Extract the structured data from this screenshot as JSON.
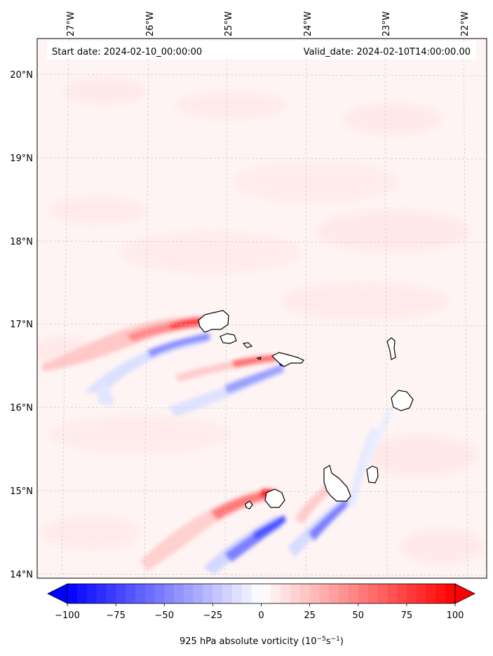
{
  "header": {
    "start_date": "Start date: 2024-02-10_00:00:00",
    "valid_date": "Valid_date: 2024-02-10T14:00:00.00"
  },
  "longitude_ticks": [
    "27°W",
    "26°W",
    "25°W",
    "24°W",
    "23°W",
    "22°W"
  ],
  "latitude_ticks": [
    "20°N",
    "19°N",
    "18°N",
    "17°N",
    "16°N",
    "15°N",
    "14°N"
  ],
  "colorbar": {
    "ticks": [
      "−100",
      "−75",
      "−50",
      "−25",
      "0",
      "25",
      "50",
      "75",
      "100"
    ],
    "label_main": "925 hPa absolute vorticity (10",
    "label_exp1": "−5",
    "label_mid": "s",
    "label_exp2": "−1",
    "label_end": ")",
    "color_neg": "#0000ff",
    "color_zero": "#ffffff",
    "color_pos": "#ff0000"
  }
}
